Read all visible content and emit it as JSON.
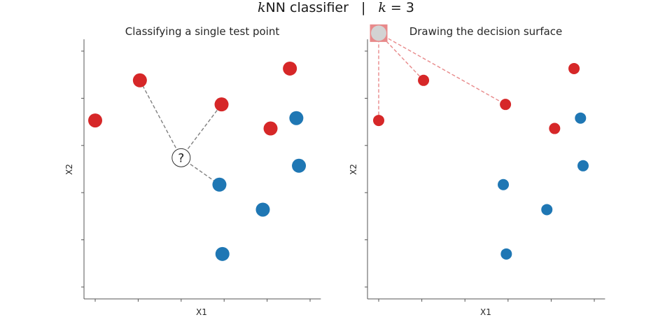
{
  "figure": {
    "title_italic": "k",
    "title_rest": "NN classifier",
    "separator": "|",
    "k_italic": "k",
    "k_rest": "= 3"
  },
  "colors": {
    "class_red": "#d62728",
    "class_blue": "#1f77b4",
    "neighbor_line_left": "#808080",
    "neighbor_line_right": "#e8898a",
    "query_cell_fill": "#e8898a",
    "query_point_fill": "#d3d3d3",
    "axis": "#555555"
  },
  "chart_data": [
    {
      "type": "scatter",
      "title": "Classifying a single test point",
      "xlabel": "X1",
      "ylabel": "X2",
      "xlim": [
        -0.25,
        5.25
      ],
      "ylim": [
        -0.25,
        5.25
      ],
      "grid": false,
      "series": [
        {
          "class": "red",
          "points": [
            [
              0.0,
              3.53
            ],
            [
              1.04,
              4.38
            ],
            [
              2.94,
              3.87
            ],
            [
              4.53,
              4.63
            ],
            [
              4.08,
              3.36
            ]
          ]
        },
        {
          "class": "blue",
          "points": [
            [
              4.68,
              3.58
            ],
            [
              4.74,
              2.57
            ],
            [
              2.89,
              2.17
            ],
            [
              3.9,
              1.64
            ],
            [
              2.96,
              0.7
            ]
          ]
        }
      ],
      "query_point": {
        "x": 2.0,
        "y": 2.74,
        "label": "?"
      },
      "neighbors": [
        [
          1.04,
          4.38
        ],
        [
          2.94,
          3.87
        ],
        [
          2.89,
          2.17
        ]
      ]
    },
    {
      "type": "scatter",
      "title": "Drawing the decision surface",
      "xlabel": "X1",
      "ylabel": "X2",
      "xlim": [
        -0.25,
        5.25
      ],
      "ylim": [
        -0.25,
        5.25
      ],
      "grid": false,
      "series": [
        {
          "class": "red",
          "points": [
            [
              0.0,
              3.53
            ],
            [
              1.04,
              4.38
            ],
            [
              2.94,
              3.87
            ],
            [
              4.53,
              4.63
            ],
            [
              4.08,
              3.36
            ]
          ]
        },
        {
          "class": "blue",
          "points": [
            [
              4.68,
              3.58
            ],
            [
              4.74,
              2.57
            ],
            [
              2.89,
              2.17
            ],
            [
              3.9,
              1.64
            ],
            [
              2.96,
              0.7
            ]
          ]
        }
      ],
      "query_point": {
        "x": 0.0,
        "y": 5.38
      },
      "neighbors": [
        [
          0.0,
          3.53
        ],
        [
          1.04,
          4.38
        ],
        [
          2.94,
          3.87
        ]
      ]
    }
  ]
}
